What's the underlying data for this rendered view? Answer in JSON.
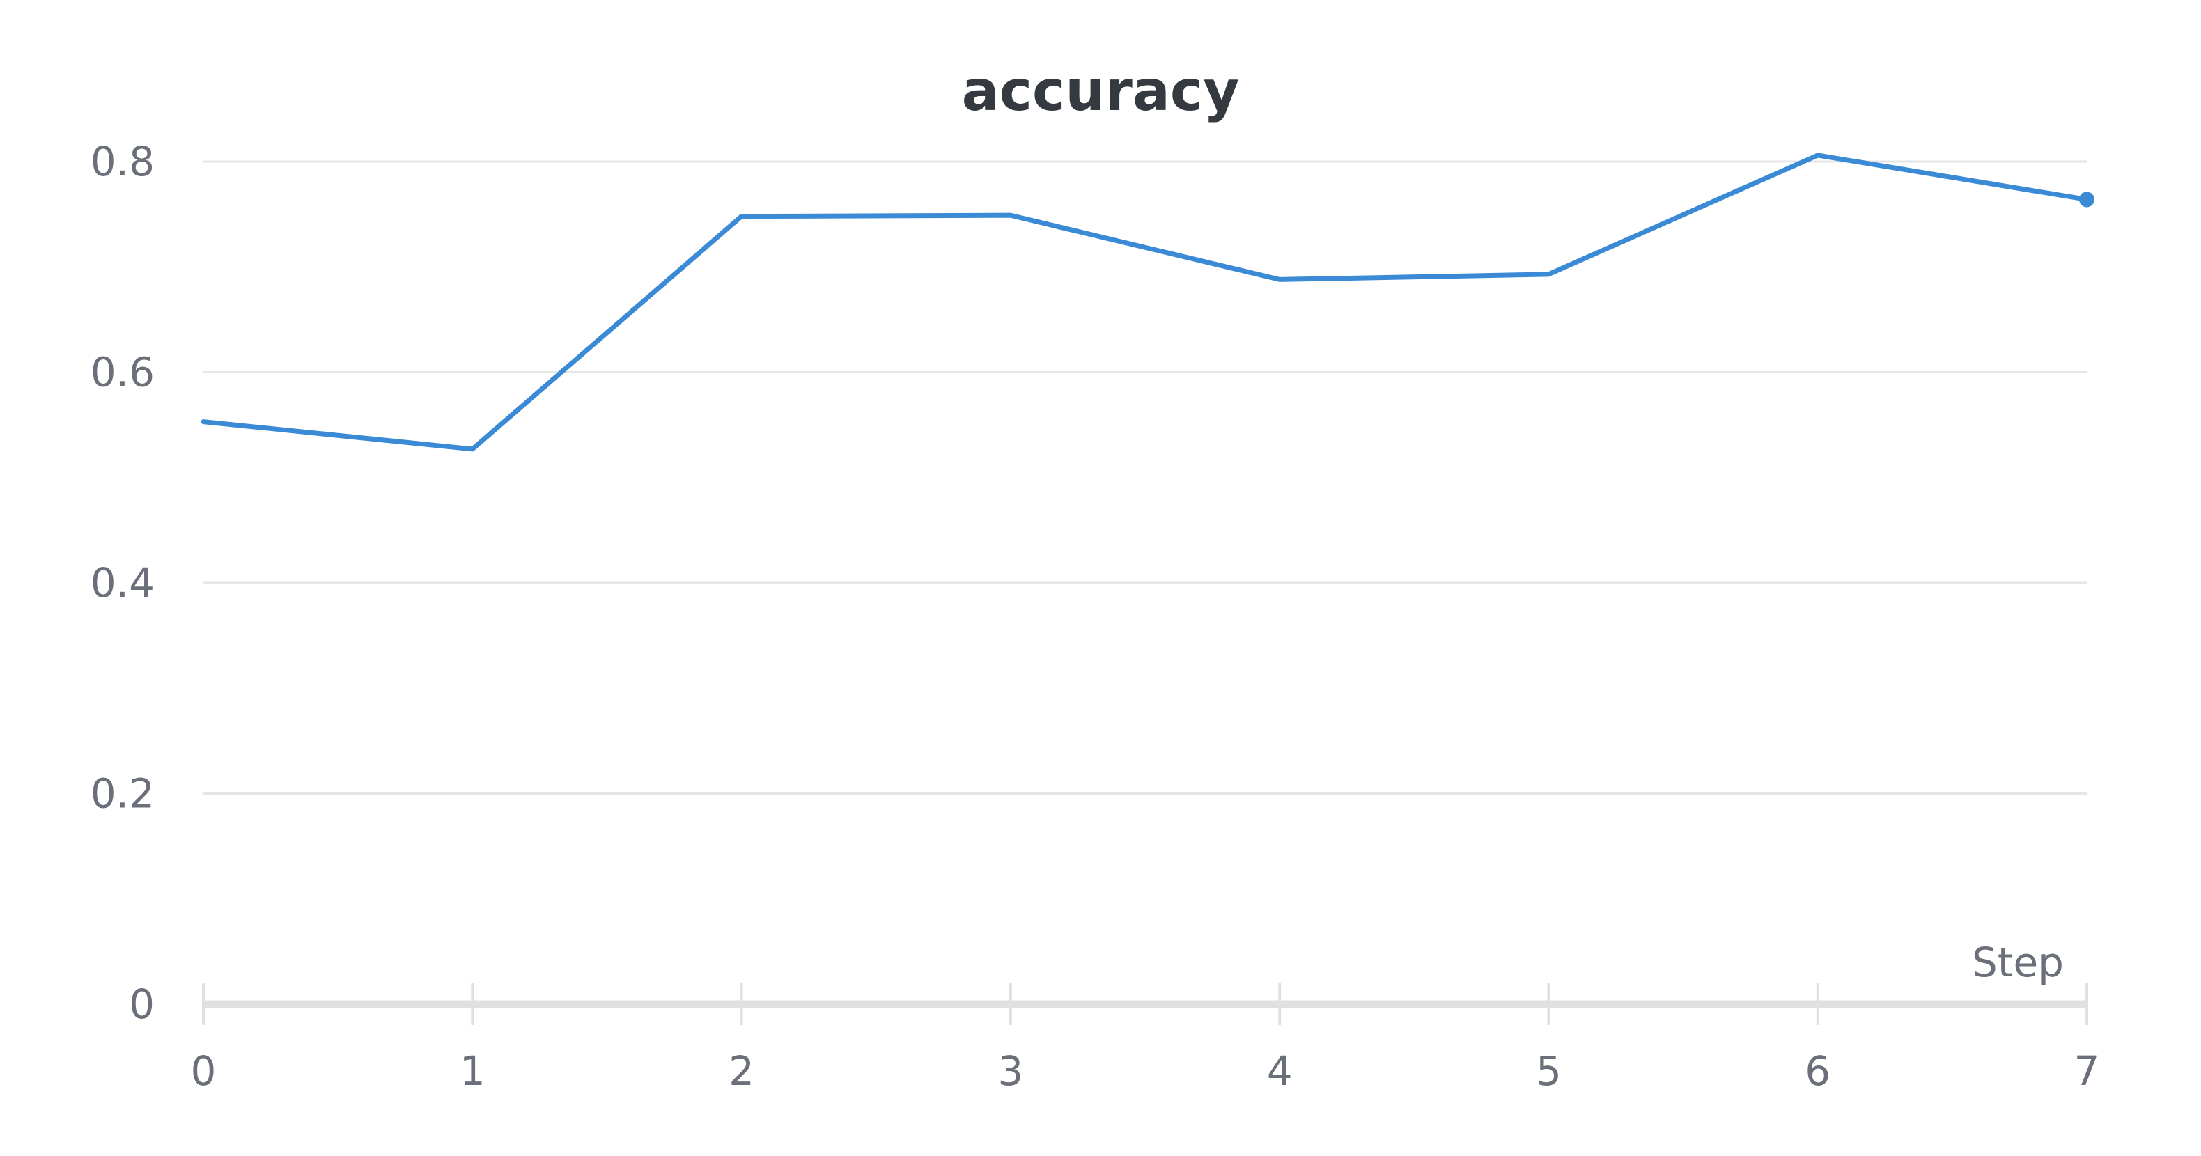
{
  "chart_data": {
    "type": "line",
    "title": "accuracy",
    "xlabel": "Step",
    "ylabel": "",
    "x": [
      0,
      1,
      2,
      3,
      4,
      5,
      6,
      7
    ],
    "series": [
      {
        "values": [
          0.553,
          0.527,
          0.748,
          0.749,
          0.688,
          0.693,
          0.806,
          0.764
        ],
        "color": "#3a8ad6"
      }
    ],
    "xlim": [
      0,
      7
    ],
    "ylim": [
      0,
      0.8
    ],
    "x_ticks": [
      "0",
      "1",
      "2",
      "3",
      "4",
      "5",
      "6",
      "7"
    ],
    "y_ticks": [
      "0",
      "0.2",
      "0.4",
      "0.6",
      "0.8"
    ],
    "grid": true,
    "legend": "none",
    "gridline_color": "#e6e6e6",
    "axis_color": "#e0e0e0",
    "last_point_marker": true
  }
}
